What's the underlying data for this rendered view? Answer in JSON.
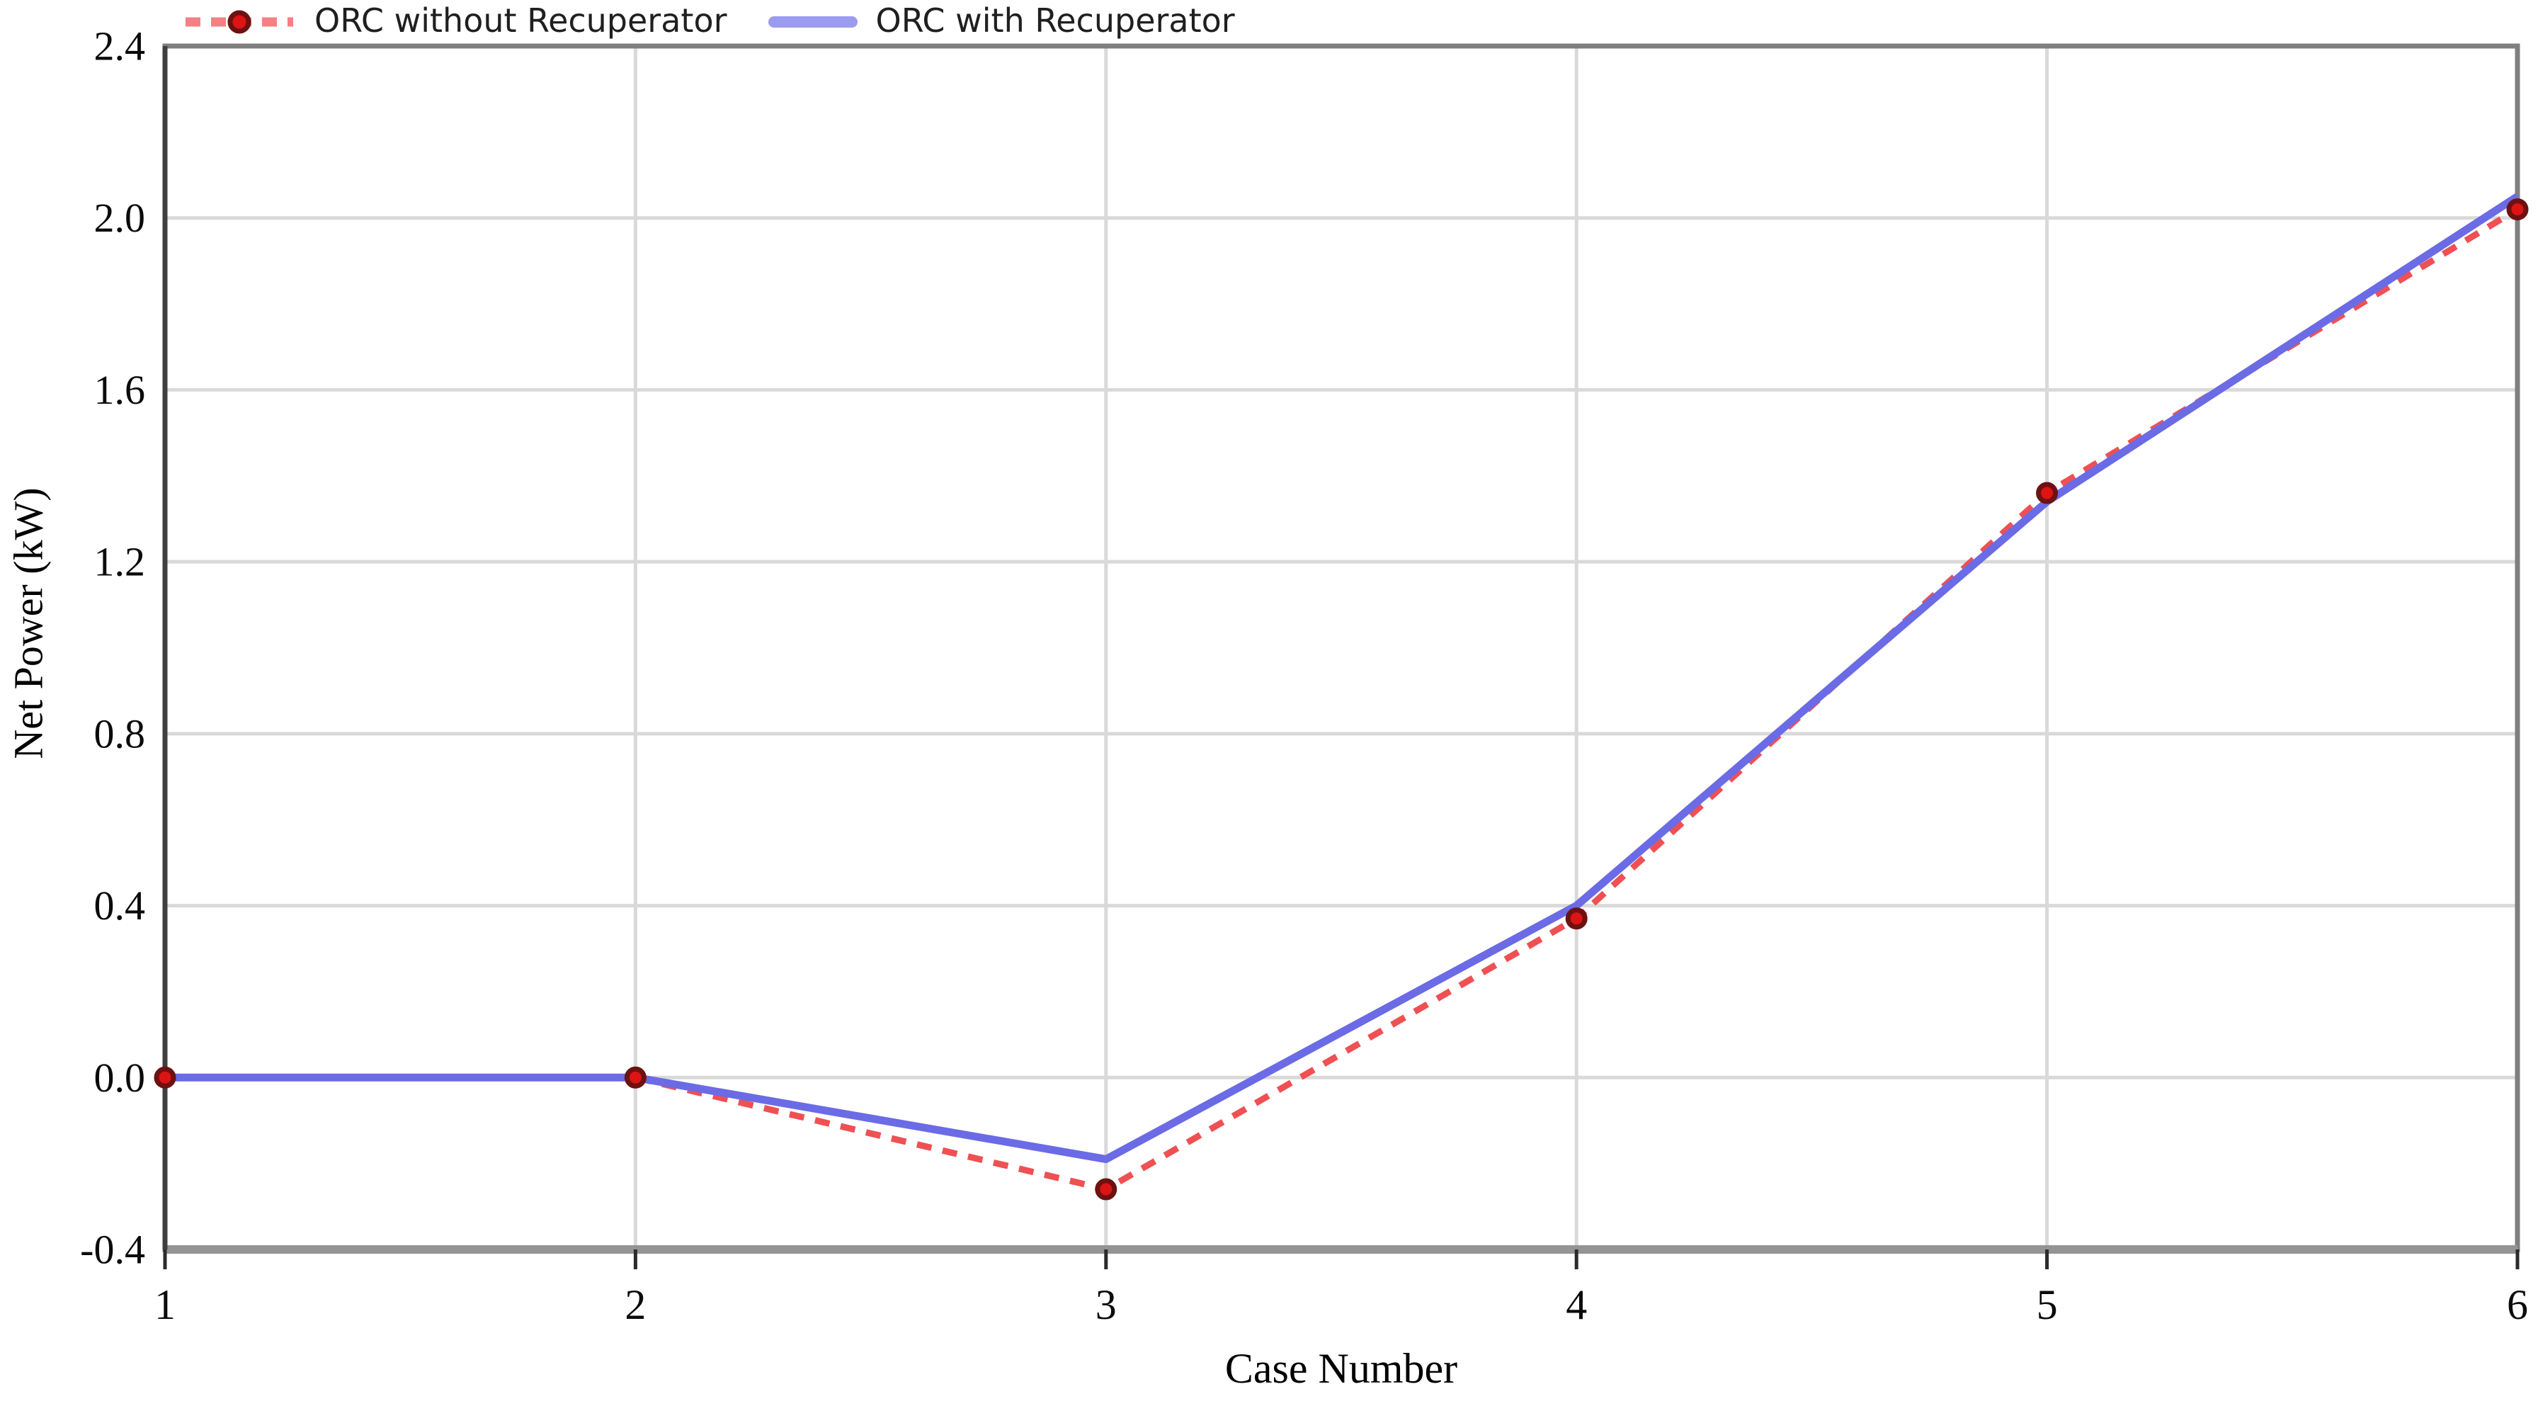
{
  "chart_data": {
    "type": "line",
    "title": "",
    "xlabel": "Case Number",
    "ylabel": "Net Power (kW)",
    "x": [
      1,
      2,
      3,
      4,
      5,
      6
    ],
    "xlim": [
      1,
      6
    ],
    "ylim": [
      -0.4,
      2.4
    ],
    "xticks": [
      "1",
      "2",
      "3",
      "4",
      "5",
      "6"
    ],
    "yticks": [
      "2.4",
      "2.0",
      "1.6",
      "1.2",
      "0.8",
      "0.4",
      "0.0",
      "-0.4"
    ],
    "grid": true,
    "legend_position": "top-left",
    "series": [
      {
        "name": "ORC without Recuperator",
        "style": "dashed",
        "color": "#ef5053",
        "legend_color": "#f58084",
        "marker": "circle",
        "marker_fill": "#dd1414",
        "marker_edge": "#6d1111",
        "values": [
          0.0,
          0.0,
          -0.26,
          0.37,
          1.36,
          2.02
        ]
      },
      {
        "name": "ORC with Recuperator",
        "style": "solid",
        "color": "#6b6be6",
        "legend_color": "#9b9bf0",
        "marker": "none",
        "values": [
          0.0,
          0.0,
          -0.19,
          0.4,
          1.34,
          2.05
        ]
      }
    ],
    "palette": {
      "gridline": "#d9d9d9",
      "border": "#7f7f7f",
      "bottom_axis": "#949494",
      "left_axis": "#3f3f3f",
      "tick": "#2b2b2b",
      "tick_label": "#0a0a0a"
    }
  }
}
